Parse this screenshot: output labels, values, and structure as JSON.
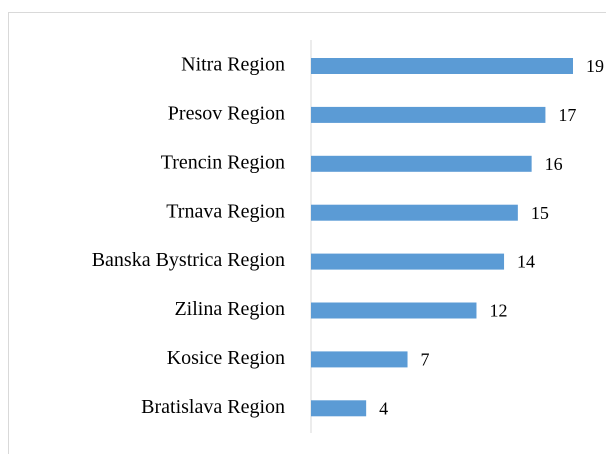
{
  "chart_data": {
    "type": "bar",
    "orientation": "horizontal",
    "categories": [
      "Nitra Region",
      "Presov Region",
      "Trencin Region",
      "Trnava Region",
      "Banska Bystrica Region",
      "Zilina Region",
      "Kosice Region",
      "Bratislava Region"
    ],
    "values": [
      19,
      17,
      16,
      15,
      14,
      12,
      7,
      4
    ],
    "color": "#5b9bd5"
  }
}
